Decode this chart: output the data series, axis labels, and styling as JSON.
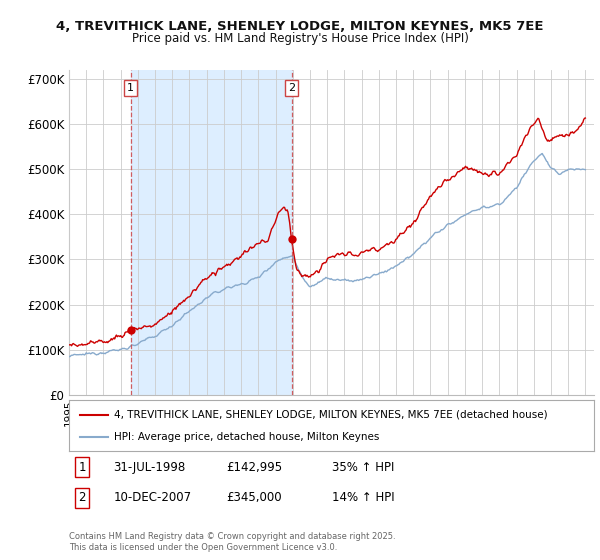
{
  "title_line1": "4, TREVITHICK LANE, SHENLEY LODGE, MILTON KEYNES, MK5 7EE",
  "title_line2": "Price paid vs. HM Land Registry's House Price Index (HPI)",
  "ylim": [
    0,
    720000
  ],
  "yticks": [
    0,
    100000,
    200000,
    300000,
    400000,
    500000,
    600000,
    700000
  ],
  "ytick_labels": [
    "£0",
    "£100K",
    "£200K",
    "£300K",
    "£400K",
    "£500K",
    "£600K",
    "£700K"
  ],
  "xlim_start": 1995,
  "xlim_end": 2025.5,
  "background_color": "#ffffff",
  "grid_color": "#cccccc",
  "shade_color": "#ddeeff",
  "sale1": {
    "date_num": 1998.58,
    "price": 142995,
    "label": "1"
  },
  "sale2": {
    "date_num": 2007.94,
    "price": 345000,
    "label": "2"
  },
  "legend_line1": "4, TREVITHICK LANE, SHENLEY LODGE, MILTON KEYNES, MK5 7EE (detached house)",
  "legend_line2": "HPI: Average price, detached house, Milton Keynes",
  "footnote": "Contains HM Land Registry data © Crown copyright and database right 2025.\nThis data is licensed under the Open Government Licence v3.0.",
  "line_color_red": "#cc0000",
  "line_color_blue": "#88aacc",
  "dashed_line_color": "#cc4444"
}
